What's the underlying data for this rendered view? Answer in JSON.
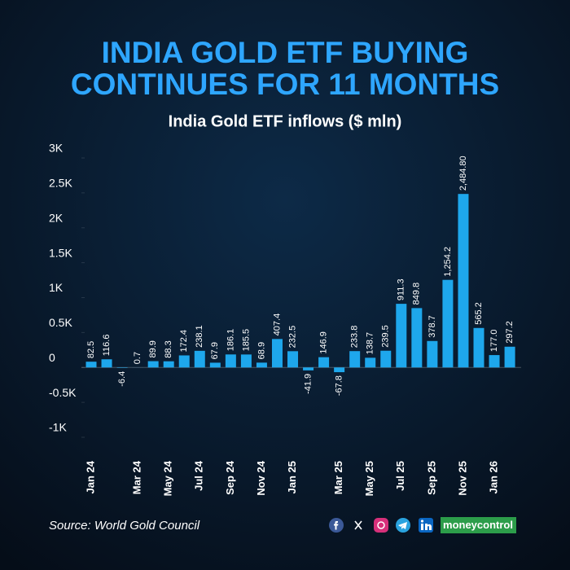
{
  "chart_data": {
    "type": "bar",
    "title": "INDIA GOLD ETF BUYING",
    "title_line2": "CONTINUES FOR 11 MONTHS",
    "subtitle": "India Gold ETF inflows ($ mln)",
    "source": "Source: World Gold Council",
    "brand": "moneycontrol",
    "categories": [
      "Jan 24",
      null,
      null,
      "Mar 24",
      null,
      "May 24",
      null,
      "Jul 24",
      null,
      "Sep 24",
      null,
      "Nov 24",
      null,
      "Jan 25",
      null,
      null,
      "Mar 25",
      null,
      "May 25",
      null,
      "Jul 25",
      null,
      "Sep 25",
      null,
      "Nov 25",
      null,
      "Jan 26",
      null
    ],
    "values": [
      82.5,
      116.6,
      -6.4,
      0.7,
      89.9,
      88.3,
      172.4,
      238.1,
      67.9,
      186.1,
      185.5,
      68.9,
      407.4,
      232.5,
      -41.9,
      146.9,
      -67.8,
      233.8,
      138.7,
      239.5,
      911.3,
      849.8,
      378.7,
      1254.2,
      2484.8,
      565.2,
      177.0,
      297.2
    ],
    "value_labels": [
      "82.5",
      "116.6",
      "-6.4",
      "0.7",
      "89.9",
      "88.3",
      "172.4",
      "238.1",
      "67.9",
      "186.1",
      "185.5",
      "68.9",
      "407.4",
      "232.5",
      "-41.9",
      "146.9",
      "-67.8",
      "233.8",
      "138.7",
      "239.5",
      "911.3",
      "849.8",
      "378.7",
      "1,254.2",
      "2,484.80",
      "565.2",
      "177.0",
      "297.2"
    ],
    "color": "#1ea7ec",
    "ylim": [
      -1000,
      3000
    ],
    "yticks": [
      {
        "value": -1000,
        "label": "-1K"
      },
      {
        "value": -500,
        "label": "-0.5K"
      },
      0,
      {
        "value": 500,
        "label": "0.5K"
      },
      {
        "value": 1000,
        "label": "1K"
      },
      {
        "value": 1500,
        "label": "1.5K"
      },
      {
        "value": 2000,
        "label": "2K"
      },
      {
        "value": 2500,
        "label": "2.5K"
      },
      {
        "value": 3000,
        "label": "3K"
      }
    ],
    "grid": false
  }
}
